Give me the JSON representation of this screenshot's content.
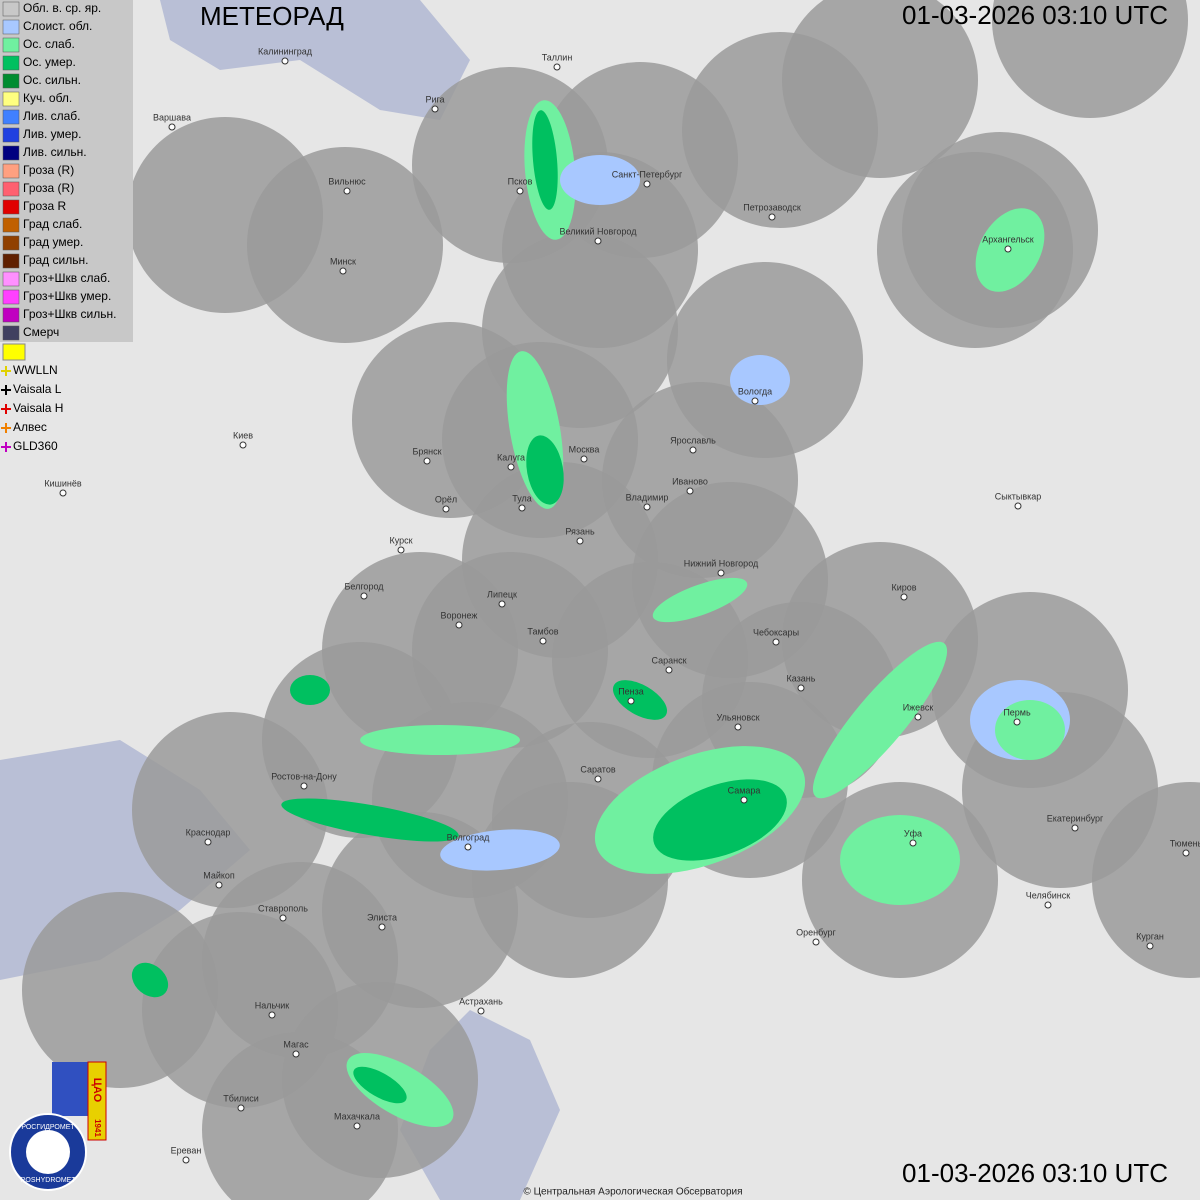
{
  "header": {
    "title": "МЕТЕОРАД",
    "timestamp_top": "01-03-2026  03:10 UTC",
    "timestamp_bottom": "01-03-2026  03:10 UTC"
  },
  "legend": {
    "items": [
      {
        "label": "Обл. в. ср. яр.",
        "color": "#c8c8c8"
      },
      {
        "label": "Слоист. обл.",
        "color": "#a8c8ff"
      },
      {
        "label": "Ос. слаб.",
        "color": "#70f0a0"
      },
      {
        "label": "Ос. умер.",
        "color": "#00c060"
      },
      {
        "label": "Ос. сильн.",
        "color": "#008c30"
      },
      {
        "label": "Куч. обл.",
        "color": "#ffff80"
      },
      {
        "label": "Лив. слаб.",
        "color": "#4080ff"
      },
      {
        "label": "Лив. умер.",
        "color": "#2040e0"
      },
      {
        "label": "Лив. сильн.",
        "color": "#000080"
      },
      {
        "label": "Гроза (R)",
        "color": "#ffa080"
      },
      {
        "label": "Гроза (R)",
        "color": "#ff6070"
      },
      {
        "label": "Гроза R",
        "color": "#e00000"
      },
      {
        "label": "Град слаб.",
        "color": "#c06000"
      },
      {
        "label": "Град умер.",
        "color": "#904000"
      },
      {
        "label": "Град сильн.",
        "color": "#602000"
      },
      {
        "label": "Гроз+Шкв слаб.",
        "color": "#ff90ff"
      },
      {
        "label": "Гроз+Шкв умер.",
        "color": "#ff40ff"
      },
      {
        "label": "Гроз+Шкв сильн.",
        "color": "#c000c0"
      },
      {
        "label": "Смерч",
        "color": "#404060"
      }
    ],
    "lightning": [
      {
        "label": "WWLLN",
        "color": "#e0d000"
      },
      {
        "label": "Vaisala L",
        "color": "#000000"
      },
      {
        "label": "Vaisala H",
        "color": "#e00000"
      },
      {
        "label": "Алвес",
        "color": "#f08000"
      },
      {
        "label": "GLD360",
        "color": "#c000c0"
      }
    ]
  },
  "cities": [
    "Калининград",
    "Таллин",
    "Рига",
    "Варшава",
    "Санкт-Петербург",
    "Вильнюс",
    "Псков",
    "Петрозаводск",
    "Архангельск",
    "Великий Новгород",
    "Минск",
    "Вологда",
    "Киев",
    "Брянск",
    "Москва",
    "Ярославль",
    "Калуга",
    "Иваново",
    "Кишинёв",
    "Тула",
    "Владимир",
    "Сыктывкар",
    "Орёл",
    "Рязань",
    "Курск",
    "Нижний Новгород",
    "Белгород",
    "Киров",
    "Липецк",
    "Воронеж",
    "Тамбов",
    "Чебоксары",
    "Саранск",
    "Казань",
    "Пенза",
    "Ижевск",
    "Пермь",
    "Ульяновск",
    "Ростов-на-Дону",
    "Саратов",
    "Самара",
    "Краснодар",
    "Волгоград",
    "Уфа",
    "Екатеринбург",
    "Майкоп",
    "Тюмень",
    "Челябинск",
    "Ставрополь",
    "Элиста",
    "Оренбург",
    "Курган",
    "Астрахань",
    "Нальчик",
    "Магас",
    "Тбилиси",
    "Махачкала",
    "Ереван"
  ],
  "footer": {
    "copyright": "© Центральная Аэрологическая Обсерватория"
  },
  "logo": {
    "agency": "РОСГИДРОМЕТ",
    "agency_latin": "ROSHYDROMET",
    "org": "ЦАО",
    "year": "1941"
  }
}
